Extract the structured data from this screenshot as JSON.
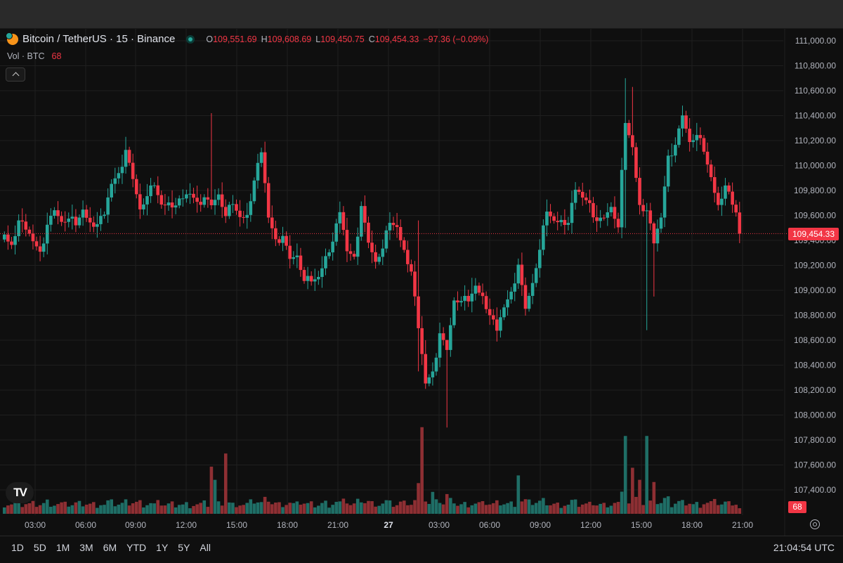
{
  "header": {
    "symbol": "Bitcoin / TetherUS · 15 · Binance",
    "ohlc": [
      {
        "k": "O",
        "v": "109,551.69"
      },
      {
        "k": "H",
        "v": "109,608.69"
      },
      {
        "k": "L",
        "v": "109,450.75"
      },
      {
        "k": "C",
        "v": "109,454.33"
      }
    ],
    "change": "−97.36 (−0.09%)",
    "vol_label": "Vol · BTC",
    "vol_value": "68"
  },
  "current_price_label": "109,454.33",
  "current_volume_label": "68",
  "time_ranges": [
    "1D",
    "5D",
    "1M",
    "3M",
    "6M",
    "YTD",
    "1Y",
    "5Y",
    "All"
  ],
  "clock": "21:04:54 UTC",
  "colors": {
    "up": "#26a69a",
    "down": "#f23645",
    "up_volume": "#1f6e66",
    "down_volume": "#8e2f33",
    "background": "#0f0f0f",
    "grid": "#1f1f1f"
  },
  "icons": {
    "logo": "tradingview-logo-icon",
    "settings": "settings-icon",
    "collapse": "chevron-up-icon",
    "coin": "bitcoin-icon"
  },
  "chart_data": {
    "type": "candlestick",
    "interval": "15",
    "ylim": [
      107200,
      111100
    ],
    "y_ticks": [
      "111,000.00",
      "110,800.00",
      "110,600.00",
      "110,400.00",
      "110,200.00",
      "110,000.00",
      "109,800.00",
      "109,600.00",
      "109,400.00",
      "109,200.00",
      "109,000.00",
      "108,800.00",
      "108,600.00",
      "108,400.00",
      "108,200.00",
      "108,000.00",
      "107,800.00",
      "107,600.00",
      "107,400.00"
    ],
    "x_ticks": [
      "03:00",
      "06:00",
      "09:00",
      "12:00",
      "15:00",
      "18:00",
      "21:00",
      "27",
      "03:00",
      "06:00",
      "09:00",
      "12:00",
      "15:00",
      "18:00",
      "21:00"
    ],
    "last_price": 109454.33,
    "anchors": [
      [
        0,
        109420
      ],
      [
        2,
        109380
      ],
      [
        4,
        109560
      ],
      [
        6,
        109470
      ],
      [
        8,
        109420
      ],
      [
        10,
        109320
      ],
      [
        12,
        109520
      ],
      [
        14,
        109620
      ],
      [
        16,
        109570
      ],
      [
        18,
        109580
      ],
      [
        20,
        109510
      ],
      [
        22,
        109620
      ],
      [
        24,
        109560
      ],
      [
        26,
        109530
      ],
      [
        28,
        109590
      ],
      [
        30,
        109880
      ],
      [
        32,
        109950
      ],
      [
        34,
        110120
      ],
      [
        36,
        109870
      ],
      [
        38,
        109670
      ],
      [
        40,
        109760
      ],
      [
        42,
        109830
      ],
      [
        44,
        109660
      ],
      [
        46,
        109720
      ],
      [
        48,
        109680
      ],
      [
        50,
        109720
      ],
      [
        52,
        109800
      ],
      [
        54,
        109720
      ],
      [
        56,
        109740
      ],
      [
        58,
        109660
      ],
      [
        60,
        109790
      ],
      [
        62,
        109600
      ],
      [
        64,
        109680
      ],
      [
        66,
        109560
      ],
      [
        68,
        109620
      ],
      [
        70,
        109880
      ],
      [
        72,
        110090
      ],
      [
        74,
        109610
      ],
      [
        76,
        109420
      ],
      [
        78,
        109430
      ],
      [
        80,
        109230
      ],
      [
        82,
        109300
      ],
      [
        84,
        109080
      ],
      [
        86,
        109060
      ],
      [
        88,
        109080
      ],
      [
        90,
        109290
      ],
      [
        92,
        109390
      ],
      [
        94,
        109610
      ],
      [
        96,
        109340
      ],
      [
        98,
        109280
      ],
      [
        100,
        109670
      ],
      [
        102,
        109360
      ],
      [
        104,
        109250
      ],
      [
        106,
        109340
      ],
      [
        108,
        109530
      ],
      [
        110,
        109480
      ],
      [
        112,
        109340
      ],
      [
        114,
        109150
      ],
      [
        116,
        108680
      ],
      [
        118,
        108280
      ],
      [
        120,
        108360
      ],
      [
        122,
        108650
      ],
      [
        124,
        108500
      ],
      [
        126,
        108940
      ],
      [
        128,
        108920
      ],
      [
        130,
        108900
      ],
      [
        132,
        109010
      ],
      [
        134,
        108970
      ],
      [
        136,
        108800
      ],
      [
        138,
        108660
      ],
      [
        140,
        108890
      ],
      [
        142,
        109000
      ],
      [
        144,
        109200
      ],
      [
        146,
        108830
      ],
      [
        148,
        109080
      ],
      [
        150,
        109330
      ],
      [
        152,
        109620
      ],
      [
        154,
        109530
      ],
      [
        156,
        109580
      ],
      [
        158,
        109540
      ],
      [
        160,
        109790
      ],
      [
        162,
        109770
      ],
      [
        164,
        109710
      ],
      [
        166,
        109550
      ],
      [
        168,
        109560
      ],
      [
        170,
        109690
      ],
      [
        172,
        109510
      ],
      [
        174,
        110330
      ],
      [
        176,
        110120
      ],
      [
        178,
        109700
      ],
      [
        180,
        109640
      ],
      [
        182,
        109360
      ],
      [
        184,
        109610
      ],
      [
        186,
        110090
      ],
      [
        188,
        110160
      ],
      [
        190,
        110380
      ],
      [
        192,
        110210
      ],
      [
        194,
        110250
      ],
      [
        196,
        110100
      ],
      [
        198,
        109880
      ],
      [
        200,
        109700
      ],
      [
        202,
        109840
      ],
      [
        204,
        109670
      ],
      [
        206,
        109560
      ]
    ],
    "extreme_highs": [
      [
        34,
        110230
      ],
      [
        58,
        110420
      ],
      [
        116,
        109560
      ],
      [
        118,
        108600
      ],
      [
        124,
        108580
      ],
      [
        131,
        109100
      ],
      [
        174,
        110700
      ],
      [
        176,
        110630
      ],
      [
        180,
        109700
      ],
      [
        182,
        109550
      ],
      [
        190,
        110480
      ]
    ],
    "extreme_lows": [
      [
        116,
        108350
      ],
      [
        118,
        108210
      ],
      [
        124,
        107900
      ],
      [
        174,
        109500
      ],
      [
        180,
        108680
      ],
      [
        182,
        108950
      ]
    ],
    "volume_ylim": [
      0,
      200
    ],
    "volume_last": 68,
    "volume_spikes": [
      [
        58,
        86
      ],
      [
        59,
        62
      ],
      [
        62,
        110
      ],
      [
        116,
        56
      ],
      [
        117,
        158
      ],
      [
        120,
        40
      ],
      [
        124,
        36
      ],
      [
        144,
        70
      ],
      [
        174,
        142
      ],
      [
        176,
        84
      ],
      [
        178,
        62
      ],
      [
        180,
        142
      ],
      [
        182,
        58
      ]
    ]
  }
}
